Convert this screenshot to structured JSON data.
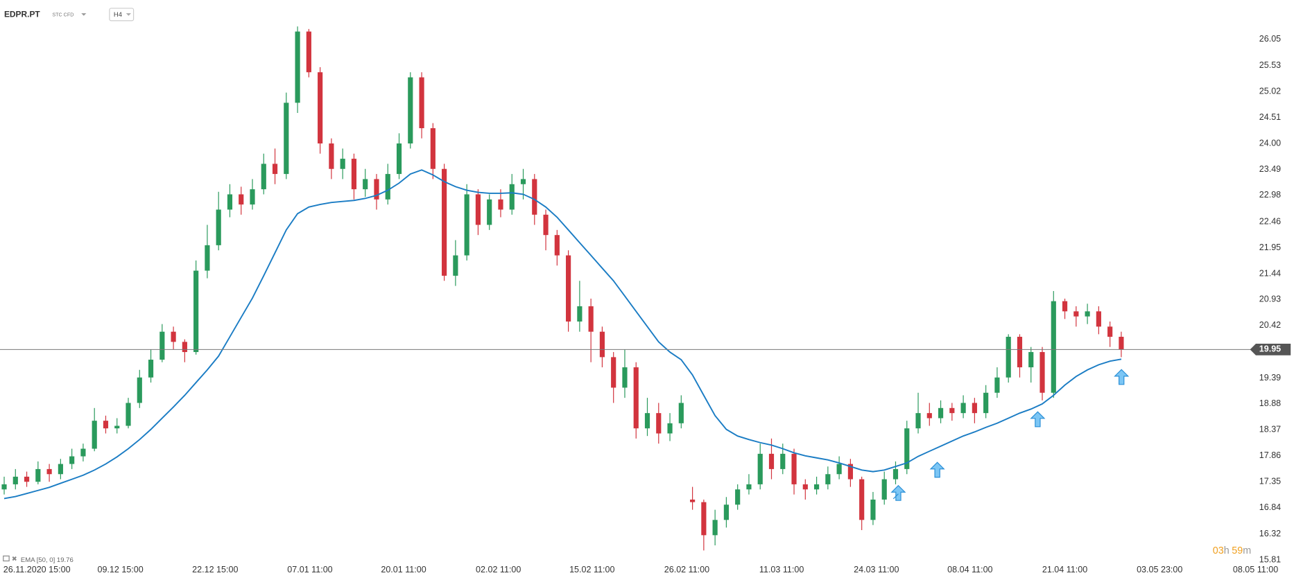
{
  "chart_data": {
    "type": "candlestick",
    "symbol": "EDPR.PT",
    "instrument_type": "STC CFD",
    "timeframe": "H4",
    "up_color": "#2a9a5c",
    "down_color": "#d2343e",
    "open": [
      17.2,
      17.3,
      17.45,
      17.35,
      17.6,
      17.5,
      17.7,
      17.85,
      18.0,
      18.55,
      18.4,
      18.45,
      18.9,
      19.4,
      19.75,
      20.3,
      20.1,
      19.9,
      21.5,
      22.0,
      22.7,
      23.0,
      22.8,
      23.1,
      23.6,
      23.4,
      24.8,
      26.2,
      25.4,
      24.0,
      23.5,
      23.7,
      23.1,
      23.3,
      22.9,
      23.4,
      24.0,
      25.3,
      24.3,
      23.5,
      21.4,
      21.8,
      23.0,
      22.4,
      22.9,
      22.7,
      23.2,
      23.3,
      22.6,
      22.2,
      21.8,
      20.5,
      20.8,
      20.3,
      19.8,
      19.2,
      19.6,
      18.4,
      18.7,
      18.3,
      18.5,
      17.0,
      16.95,
      16.3,
      16.6,
      16.9,
      17.2,
      17.3,
      17.9,
      17.6,
      17.9,
      17.3,
      17.2,
      17.3,
      17.5,
      17.7,
      17.4,
      16.6,
      17.0,
      17.4,
      17.6,
      18.4,
      18.7,
      18.6,
      18.8,
      18.7,
      18.9,
      18.7,
      19.1,
      19.4,
      20.2,
      19.6,
      19.9,
      19.1,
      20.9,
      20.7,
      20.6,
      20.7,
      20.4,
      20.2
    ],
    "high": [
      17.45,
      17.6,
      17.55,
      17.75,
      17.7,
      17.8,
      18.0,
      18.1,
      18.8,
      18.65,
      18.6,
      19.0,
      19.55,
      19.95,
      20.45,
      20.4,
      20.15,
      21.7,
      22.4,
      23.05,
      23.2,
      23.15,
      23.3,
      23.8,
      23.9,
      25.0,
      26.3,
      26.25,
      25.5,
      24.1,
      23.9,
      23.8,
      23.5,
      23.4,
      23.6,
      24.2,
      25.4,
      25.4,
      24.4,
      23.6,
      22.1,
      23.2,
      23.1,
      23.0,
      23.1,
      23.4,
      23.5,
      23.4,
      22.7,
      22.3,
      21.9,
      21.3,
      20.95,
      20.4,
      19.9,
      19.95,
      19.7,
      19.0,
      18.9,
      18.7,
      19.05,
      17.25,
      17.0,
      16.8,
      17.05,
      17.3,
      17.5,
      18.1,
      18.2,
      18.1,
      18.0,
      17.4,
      17.45,
      17.65,
      17.85,
      17.8,
      17.45,
      17.15,
      17.55,
      17.75,
      18.55,
      19.1,
      18.9,
      18.95,
      18.9,
      19.05,
      19.0,
      19.25,
      19.6,
      20.25,
      20.25,
      20.0,
      20.0,
      21.1,
      20.95,
      20.8,
      20.85,
      20.8,
      20.5,
      20.3
    ],
    "low": [
      17.1,
      17.2,
      17.25,
      17.3,
      17.35,
      17.4,
      17.6,
      17.75,
      17.95,
      18.3,
      18.3,
      18.4,
      18.8,
      19.3,
      19.7,
      19.95,
      19.7,
      19.85,
      21.35,
      21.9,
      22.55,
      22.6,
      22.7,
      23.0,
      23.2,
      23.3,
      24.6,
      25.3,
      23.8,
      23.3,
      23.3,
      22.9,
      22.95,
      22.7,
      22.8,
      23.3,
      23.9,
      24.1,
      23.3,
      21.3,
      21.2,
      21.7,
      22.2,
      22.3,
      22.55,
      22.6,
      22.9,
      22.4,
      21.9,
      21.6,
      20.3,
      20.3,
      19.7,
      19.6,
      18.9,
      19.0,
      18.2,
      18.25,
      18.1,
      18.15,
      18.4,
      16.8,
      16.0,
      16.1,
      16.45,
      16.8,
      17.1,
      17.2,
      17.4,
      17.5,
      17.1,
      17.0,
      17.1,
      17.2,
      17.4,
      17.25,
      16.4,
      16.5,
      16.9,
      17.3,
      17.5,
      18.3,
      18.45,
      18.5,
      18.55,
      18.6,
      18.5,
      18.6,
      19.0,
      19.3,
      19.4,
      19.3,
      18.95,
      19.0,
      20.55,
      20.4,
      20.45,
      20.25,
      20.0,
      19.8
    ],
    "close": [
      17.3,
      17.45,
      17.35,
      17.6,
      17.5,
      17.7,
      17.85,
      18.0,
      18.55,
      18.4,
      18.45,
      18.9,
      19.4,
      19.75,
      20.3,
      20.1,
      19.9,
      21.5,
      22.0,
      22.7,
      23.0,
      22.8,
      23.1,
      23.6,
      23.4,
      24.8,
      26.2,
      25.4,
      24.0,
      23.5,
      23.7,
      23.1,
      23.3,
      22.9,
      23.4,
      24.0,
      25.3,
      24.3,
      23.5,
      21.4,
      21.8,
      23.0,
      22.4,
      22.9,
      22.7,
      23.2,
      23.3,
      22.6,
      22.2,
      21.8,
      20.5,
      20.8,
      20.3,
      19.8,
      19.2,
      19.6,
      18.4,
      18.7,
      18.3,
      18.5,
      18.9,
      16.95,
      16.3,
      16.6,
      16.9,
      17.2,
      17.3,
      17.9,
      17.6,
      17.9,
      17.3,
      17.2,
      17.3,
      17.5,
      17.7,
      17.4,
      16.6,
      17.0,
      17.4,
      17.6,
      18.4,
      18.7,
      18.6,
      18.8,
      18.7,
      18.9,
      18.7,
      19.1,
      19.4,
      20.2,
      19.6,
      19.9,
      19.1,
      20.9,
      20.7,
      20.6,
      20.7,
      20.4,
      20.2,
      19.95
    ],
    "ema": {
      "name": "EMA [50, 0] 19.76",
      "color": "#1a7cc4",
      "values": [
        17.02,
        17.06,
        17.12,
        17.18,
        17.24,
        17.32,
        17.4,
        17.48,
        17.58,
        17.7,
        17.84,
        18.0,
        18.18,
        18.38,
        18.6,
        18.82,
        19.05,
        19.3,
        19.55,
        19.82,
        20.2,
        20.58,
        20.96,
        21.4,
        21.85,
        22.3,
        22.62,
        22.75,
        22.8,
        22.84,
        22.86,
        22.88,
        22.92,
        22.98,
        23.08,
        23.22,
        23.4,
        23.48,
        23.38,
        23.25,
        23.15,
        23.08,
        23.04,
        23.02,
        23.02,
        23.03,
        23.0,
        22.9,
        22.75,
        22.55,
        22.3,
        22.05,
        21.8,
        21.55,
        21.3,
        21.0,
        20.7,
        20.4,
        20.1,
        19.9,
        19.75,
        19.45,
        19.05,
        18.65,
        18.38,
        18.25,
        18.18,
        18.12,
        18.07,
        18.0,
        17.92,
        17.86,
        17.82,
        17.78,
        17.72,
        17.65,
        17.58,
        17.55,
        17.58,
        17.65,
        17.72,
        17.85,
        17.95,
        18.05,
        18.15,
        18.25,
        18.33,
        18.42,
        18.5,
        18.6,
        18.7,
        18.78,
        18.88,
        19.05,
        19.25,
        19.42,
        19.55,
        19.65,
        19.72,
        19.76
      ]
    },
    "last_price": 19.95,
    "countdown": {
      "hours": "03",
      "hours_unit": "h",
      "minutes": "59",
      "minutes_unit": "m"
    },
    "xlim": [
      -0.37,
      111
    ],
    "xticks": [
      {
        "value": 0,
        "label": "26.11.2020 15:00"
      },
      {
        "value": 10.3,
        "label": "09.12 15:00"
      },
      {
        "value": 18.7,
        "label": "22.12 15:00"
      },
      {
        "value": 27.1,
        "label": "07.01 11:00"
      },
      {
        "value": 35.4,
        "label": "20.01 11:00"
      },
      {
        "value": 43.8,
        "label": "02.02 11:00"
      },
      {
        "value": 52.1,
        "label": "15.02 11:00"
      },
      {
        "value": 60.5,
        "label": "26.02 11:00"
      },
      {
        "value": 68.9,
        "label": "11.03 11:00"
      },
      {
        "value": 77.3,
        "label": "24.03 11:00"
      },
      {
        "value": 85.6,
        "label": "08.04 11:00"
      },
      {
        "value": 94.0,
        "label": "21.04 11:00"
      },
      {
        "value": 102.4,
        "label": "03.05 23:00"
      },
      {
        "value": 110.9,
        "label": "08.05 11:00"
      }
    ],
    "ylim": [
      15.745,
      26.82
    ],
    "yticks": [
      15.81,
      16.32,
      16.84,
      17.35,
      17.86,
      18.37,
      18.88,
      19.39,
      20.42,
      20.93,
      21.44,
      21.95,
      22.46,
      22.98,
      23.49,
      {
        "value": 24,
        "label": "24.00"
      },
      24.51,
      25.02,
      25.53,
      26.05
    ]
  }
}
